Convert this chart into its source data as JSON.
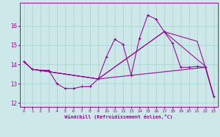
{
  "xlabel": "Windchill (Refroidissement éolien,°C)",
  "bg_color": "#cce8e8",
  "line_color": "#990099",
  "grid_color": "#aad4d4",
  "xlim": [
    -0.5,
    23.5
  ],
  "ylim": [
    11.8,
    17.2
  ],
  "xticks": [
    0,
    1,
    2,
    3,
    4,
    5,
    6,
    7,
    8,
    9,
    10,
    11,
    12,
    13,
    14,
    15,
    16,
    17,
    18,
    19,
    20,
    21,
    22,
    23
  ],
  "yticks": [
    12,
    13,
    14,
    15,
    16
  ],
  "main_line": {
    "x": [
      0,
      1,
      2,
      3,
      4,
      5,
      6,
      7,
      8,
      9,
      10,
      11,
      12,
      13,
      14,
      15,
      16,
      17,
      18,
      19,
      20,
      21,
      22,
      23
    ],
    "y": [
      14.15,
      13.75,
      13.7,
      13.7,
      13.0,
      12.75,
      12.75,
      12.85,
      12.85,
      13.25,
      14.4,
      15.3,
      15.05,
      13.45,
      15.35,
      16.55,
      16.35,
      15.7,
      15.1,
      13.85,
      13.85,
      13.9,
      13.85,
      12.35
    ],
    "marker": "+"
  },
  "extra_lines": [
    {
      "x": [
        0,
        1,
        9,
        22,
        23
      ],
      "y": [
        14.15,
        13.75,
        13.25,
        13.85,
        12.35
      ]
    },
    {
      "x": [
        0,
        1,
        9,
        17,
        22,
        23
      ],
      "y": [
        14.15,
        13.75,
        13.25,
        15.7,
        13.9,
        12.35
      ]
    },
    {
      "x": [
        0,
        1,
        9,
        17,
        21,
        22,
        23
      ],
      "y": [
        14.15,
        13.75,
        13.25,
        15.7,
        15.2,
        13.85,
        12.35
      ]
    }
  ]
}
